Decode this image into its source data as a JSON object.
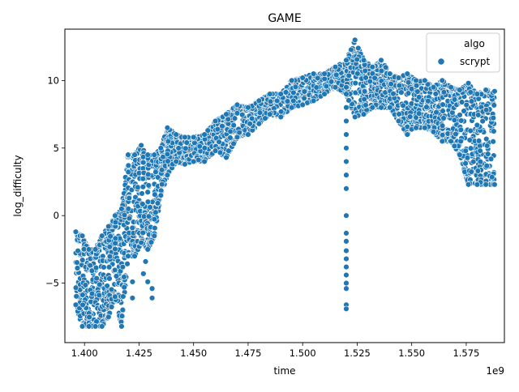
{
  "chart_data": {
    "type": "scatter",
    "title": "GAME",
    "xlabel": "time",
    "ylabel": "log_difficulty",
    "x_offset_label": "1e9",
    "xlim": [
      1391000000,
      1592500000
    ],
    "ylim": [
      -9.4,
      13.8
    ],
    "x_ticks": [
      1400000000,
      1425000000,
      1450000000,
      1475000000,
      1500000000,
      1525000000,
      1550000000,
      1575000000
    ],
    "x_tick_labels": [
      "1.400",
      "1.425",
      "1.450",
      "1.475",
      "1.500",
      "1.525",
      "1.550",
      "1.575"
    ],
    "y_ticks": [
      -5,
      0,
      5,
      10
    ],
    "y_tick_labels": [
      "−5",
      "0",
      "5",
      "10"
    ],
    "grid": false,
    "legend": {
      "title": "algo",
      "position": "top-right"
    },
    "series": [
      {
        "name": "scrypt",
        "color": "#1f77b4",
        "band_envelope": [
          {
            "x": 1396000000,
            "ymin": -6.6,
            "ymax": -1.2
          },
          {
            "x": 1399000000,
            "ymin": -8.2,
            "ymax": -1.5
          },
          {
            "x": 1402000000,
            "ymin": -8.2,
            "ymax": -2.5
          },
          {
            "x": 1405000000,
            "ymin": -8.2,
            "ymax": -2.5
          },
          {
            "x": 1408000000,
            "ymin": -8.2,
            "ymax": -1.5
          },
          {
            "x": 1411000000,
            "ymin": -7.5,
            "ymax": -0.8
          },
          {
            "x": 1414000000,
            "ymin": -6.0,
            "ymax": 0.0
          },
          {
            "x": 1417000000,
            "ymin": -8.2,
            "ymax": 0.5
          },
          {
            "x": 1420000000,
            "ymin": -3.0,
            "ymax": 4.5
          },
          {
            "x": 1423000000,
            "ymin": -3.0,
            "ymax": 4.5
          },
          {
            "x": 1426000000,
            "ymin": -2.0,
            "ymax": 5.2
          },
          {
            "x": 1429000000,
            "ymin": -2.5,
            "ymax": 4.5
          },
          {
            "x": 1432000000,
            "ymin": -1.5,
            "ymax": 4.5
          },
          {
            "x": 1435000000,
            "ymin": 1.5,
            "ymax": 5.0
          },
          {
            "x": 1438000000,
            "ymin": 3.0,
            "ymax": 6.5
          },
          {
            "x": 1442000000,
            "ymin": 4.0,
            "ymax": 6.0
          },
          {
            "x": 1446000000,
            "ymin": 3.8,
            "ymax": 5.8
          },
          {
            "x": 1450000000,
            "ymin": 4.0,
            "ymax": 5.8
          },
          {
            "x": 1455000000,
            "ymin": 4.0,
            "ymax": 6.0
          },
          {
            "x": 1460000000,
            "ymin": 4.8,
            "ymax": 7.0
          },
          {
            "x": 1465000000,
            "ymin": 4.3,
            "ymax": 7.5
          },
          {
            "x": 1470000000,
            "ymin": 5.8,
            "ymax": 8.2
          },
          {
            "x": 1475000000,
            "ymin": 6.0,
            "ymax": 8.0
          },
          {
            "x": 1480000000,
            "ymin": 6.8,
            "ymax": 8.5
          },
          {
            "x": 1485000000,
            "ymin": 7.5,
            "ymax": 9.0
          },
          {
            "x": 1490000000,
            "ymin": 7.3,
            "ymax": 9.0
          },
          {
            "x": 1495000000,
            "ymin": 8.0,
            "ymax": 10.0
          },
          {
            "x": 1500000000,
            "ymin": 8.2,
            "ymax": 10.2
          },
          {
            "x": 1505000000,
            "ymin": 8.5,
            "ymax": 10.5
          },
          {
            "x": 1510000000,
            "ymin": 9.0,
            "ymax": 10.5
          },
          {
            "x": 1515000000,
            "ymin": 9.5,
            "ymax": 11.0
          },
          {
            "x": 1520000000,
            "ymin": 9.0,
            "ymax": 11.5
          },
          {
            "x": 1524000000,
            "ymin": 7.3,
            "ymax": 13.0
          },
          {
            "x": 1528000000,
            "ymin": 7.5,
            "ymax": 11.5
          },
          {
            "x": 1532000000,
            "ymin": 8.0,
            "ymax": 11.0
          },
          {
            "x": 1536000000,
            "ymin": 8.0,
            "ymax": 11.5
          },
          {
            "x": 1540000000,
            "ymin": 8.0,
            "ymax": 10.5
          },
          {
            "x": 1544000000,
            "ymin": 7.0,
            "ymax": 10.2
          },
          {
            "x": 1548000000,
            "ymin": 6.0,
            "ymax": 10.5
          },
          {
            "x": 1552000000,
            "ymin": 6.5,
            "ymax": 10.0
          },
          {
            "x": 1556000000,
            "ymin": 6.5,
            "ymax": 10.0
          },
          {
            "x": 1560000000,
            "ymin": 6.2,
            "ymax": 9.5
          },
          {
            "x": 1564000000,
            "ymin": 5.5,
            "ymax": 10.0
          },
          {
            "x": 1568000000,
            "ymin": 5.5,
            "ymax": 9.5
          },
          {
            "x": 1572000000,
            "ymin": 4.5,
            "ymax": 9.3
          },
          {
            "x": 1576000000,
            "ymin": 2.3,
            "ymax": 9.8
          },
          {
            "x": 1580000000,
            "ymin": 2.3,
            "ymax": 9.0
          },
          {
            "x": 1584000000,
            "ymin": 2.3,
            "ymax": 9.3
          },
          {
            "x": 1588000000,
            "ymin": 2.3,
            "ymax": 9.2
          }
        ],
        "outlier_points": [
          {
            "x": 1520000000,
            "y": 9.5
          },
          {
            "x": 1520000000,
            "y": 8.0
          },
          {
            "x": 1520000000,
            "y": 7.0
          },
          {
            "x": 1520000000,
            "y": 6.0
          },
          {
            "x": 1520000000,
            "y": 5.0
          },
          {
            "x": 1520000000,
            "y": 4.0
          },
          {
            "x": 1520000000,
            "y": 3.0
          },
          {
            "x": 1520000000,
            "y": 2.0
          },
          {
            "x": 1520000000,
            "y": 0.0
          },
          {
            "x": 1520000000,
            "y": -1.3
          },
          {
            "x": 1520000000,
            "y": -1.9
          },
          {
            "x": 1520000000,
            "y": -2.6
          },
          {
            "x": 1520000000,
            "y": -3.2
          },
          {
            "x": 1520000000,
            "y": -3.8
          },
          {
            "x": 1520000000,
            "y": -4.4
          },
          {
            "x": 1520000000,
            "y": -5.0
          },
          {
            "x": 1520000000,
            "y": -5.4
          },
          {
            "x": 1520000000,
            "y": -6.6
          },
          {
            "x": 1520000000,
            "y": -6.9
          },
          {
            "x": 1422000000,
            "y": -4.9
          },
          {
            "x": 1422000000,
            "y": -6.1
          },
          {
            "x": 1427000000,
            "y": -4.3
          },
          {
            "x": 1428000000,
            "y": -3.4
          },
          {
            "x": 1429000000,
            "y": -4.9
          },
          {
            "x": 1431000000,
            "y": -5.4
          },
          {
            "x": 1431000000,
            "y": -6.1
          }
        ]
      }
    ]
  }
}
